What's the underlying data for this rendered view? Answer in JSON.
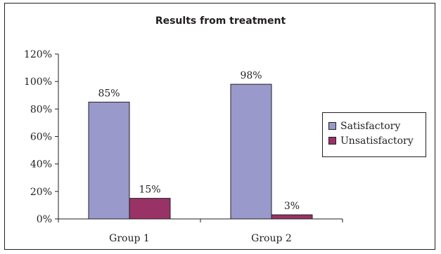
{
  "chart_data": {
    "type": "bar",
    "title": "Results from treatment",
    "xlabel": "",
    "ylabel": "",
    "categories": [
      "Group 1",
      "Group 2"
    ],
    "series": [
      {
        "name": "Satisfactory",
        "values": [
          85,
          98
        ],
        "labels": [
          "85%",
          "98%"
        ],
        "color": "#9999cc"
      },
      {
        "name": "Unsatisfactory",
        "values": [
          15,
          3
        ],
        "labels": [
          "15%",
          "3%"
        ],
        "color": "#993366"
      }
    ],
    "ylim": [
      0,
      120
    ],
    "y_ticks": [
      0,
      20,
      40,
      60,
      80,
      100,
      120
    ],
    "y_tick_labels": [
      "0%",
      "20%",
      "40%",
      "60%",
      "80%",
      "100%",
      "120%"
    ],
    "grid": false,
    "legend_position": "right"
  }
}
